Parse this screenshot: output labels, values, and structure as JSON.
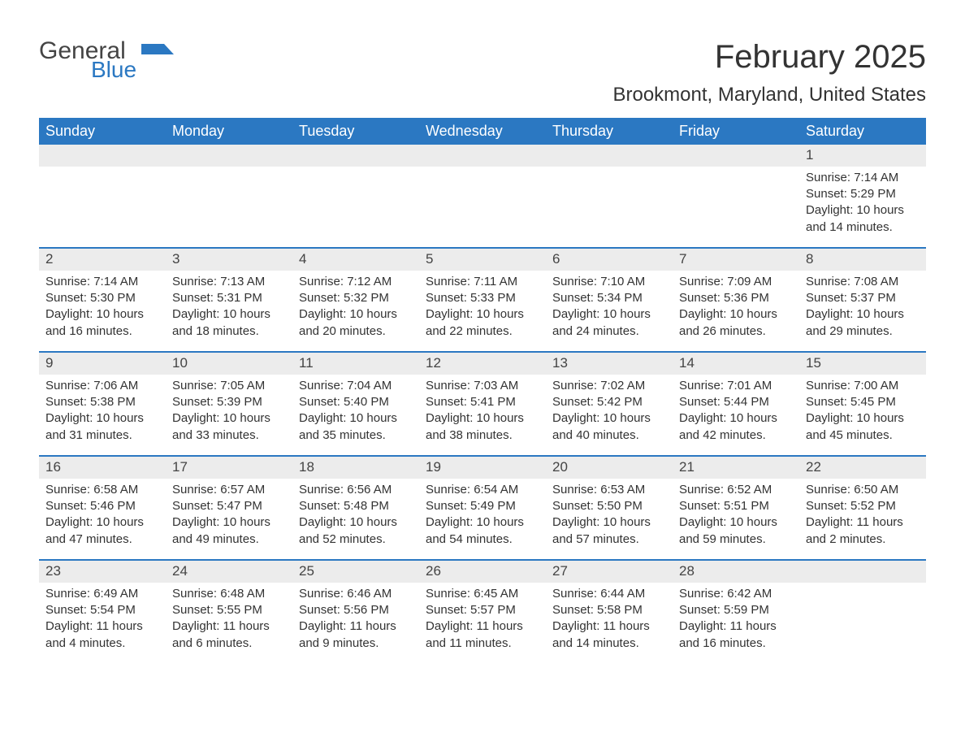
{
  "brand": {
    "word1": "General",
    "word2": "Blue",
    "flag_color": "#2b78c2"
  },
  "title": "February 2025",
  "location": "Brookmont, Maryland, United States",
  "colors": {
    "header_bg": "#2b78c2",
    "header_text": "#ffffff",
    "daynum_band_bg": "#ececec",
    "text": "#333333",
    "page_bg": "#ffffff",
    "week_divider": "#2b78c2"
  },
  "typography": {
    "title_fontsize": 40,
    "location_fontsize": 24,
    "weekday_fontsize": 18,
    "daynum_fontsize": 17,
    "body_fontsize": 15
  },
  "weekdays": [
    "Sunday",
    "Monday",
    "Tuesday",
    "Wednesday",
    "Thursday",
    "Friday",
    "Saturday"
  ],
  "weeks": [
    [
      null,
      null,
      null,
      null,
      null,
      null,
      {
        "n": "1",
        "sunrise": "Sunrise: 7:14 AM",
        "sunset": "Sunset: 5:29 PM",
        "daylight": "Daylight: 10 hours and 14 minutes."
      }
    ],
    [
      {
        "n": "2",
        "sunrise": "Sunrise: 7:14 AM",
        "sunset": "Sunset: 5:30 PM",
        "daylight": "Daylight: 10 hours and 16 minutes."
      },
      {
        "n": "3",
        "sunrise": "Sunrise: 7:13 AM",
        "sunset": "Sunset: 5:31 PM",
        "daylight": "Daylight: 10 hours and 18 minutes."
      },
      {
        "n": "4",
        "sunrise": "Sunrise: 7:12 AM",
        "sunset": "Sunset: 5:32 PM",
        "daylight": "Daylight: 10 hours and 20 minutes."
      },
      {
        "n": "5",
        "sunrise": "Sunrise: 7:11 AM",
        "sunset": "Sunset: 5:33 PM",
        "daylight": "Daylight: 10 hours and 22 minutes."
      },
      {
        "n": "6",
        "sunrise": "Sunrise: 7:10 AM",
        "sunset": "Sunset: 5:34 PM",
        "daylight": "Daylight: 10 hours and 24 minutes."
      },
      {
        "n": "7",
        "sunrise": "Sunrise: 7:09 AM",
        "sunset": "Sunset: 5:36 PM",
        "daylight": "Daylight: 10 hours and 26 minutes."
      },
      {
        "n": "8",
        "sunrise": "Sunrise: 7:08 AM",
        "sunset": "Sunset: 5:37 PM",
        "daylight": "Daylight: 10 hours and 29 minutes."
      }
    ],
    [
      {
        "n": "9",
        "sunrise": "Sunrise: 7:06 AM",
        "sunset": "Sunset: 5:38 PM",
        "daylight": "Daylight: 10 hours and 31 minutes."
      },
      {
        "n": "10",
        "sunrise": "Sunrise: 7:05 AM",
        "sunset": "Sunset: 5:39 PM",
        "daylight": "Daylight: 10 hours and 33 minutes."
      },
      {
        "n": "11",
        "sunrise": "Sunrise: 7:04 AM",
        "sunset": "Sunset: 5:40 PM",
        "daylight": "Daylight: 10 hours and 35 minutes."
      },
      {
        "n": "12",
        "sunrise": "Sunrise: 7:03 AM",
        "sunset": "Sunset: 5:41 PM",
        "daylight": "Daylight: 10 hours and 38 minutes."
      },
      {
        "n": "13",
        "sunrise": "Sunrise: 7:02 AM",
        "sunset": "Sunset: 5:42 PM",
        "daylight": "Daylight: 10 hours and 40 minutes."
      },
      {
        "n": "14",
        "sunrise": "Sunrise: 7:01 AM",
        "sunset": "Sunset: 5:44 PM",
        "daylight": "Daylight: 10 hours and 42 minutes."
      },
      {
        "n": "15",
        "sunrise": "Sunrise: 7:00 AM",
        "sunset": "Sunset: 5:45 PM",
        "daylight": "Daylight: 10 hours and 45 minutes."
      }
    ],
    [
      {
        "n": "16",
        "sunrise": "Sunrise: 6:58 AM",
        "sunset": "Sunset: 5:46 PM",
        "daylight": "Daylight: 10 hours and 47 minutes."
      },
      {
        "n": "17",
        "sunrise": "Sunrise: 6:57 AM",
        "sunset": "Sunset: 5:47 PM",
        "daylight": "Daylight: 10 hours and 49 minutes."
      },
      {
        "n": "18",
        "sunrise": "Sunrise: 6:56 AM",
        "sunset": "Sunset: 5:48 PM",
        "daylight": "Daylight: 10 hours and 52 minutes."
      },
      {
        "n": "19",
        "sunrise": "Sunrise: 6:54 AM",
        "sunset": "Sunset: 5:49 PM",
        "daylight": "Daylight: 10 hours and 54 minutes."
      },
      {
        "n": "20",
        "sunrise": "Sunrise: 6:53 AM",
        "sunset": "Sunset: 5:50 PM",
        "daylight": "Daylight: 10 hours and 57 minutes."
      },
      {
        "n": "21",
        "sunrise": "Sunrise: 6:52 AM",
        "sunset": "Sunset: 5:51 PM",
        "daylight": "Daylight: 10 hours and 59 minutes."
      },
      {
        "n": "22",
        "sunrise": "Sunrise: 6:50 AM",
        "sunset": "Sunset: 5:52 PM",
        "daylight": "Daylight: 11 hours and 2 minutes."
      }
    ],
    [
      {
        "n": "23",
        "sunrise": "Sunrise: 6:49 AM",
        "sunset": "Sunset: 5:54 PM",
        "daylight": "Daylight: 11 hours and 4 minutes."
      },
      {
        "n": "24",
        "sunrise": "Sunrise: 6:48 AM",
        "sunset": "Sunset: 5:55 PM",
        "daylight": "Daylight: 11 hours and 6 minutes."
      },
      {
        "n": "25",
        "sunrise": "Sunrise: 6:46 AM",
        "sunset": "Sunset: 5:56 PM",
        "daylight": "Daylight: 11 hours and 9 minutes."
      },
      {
        "n": "26",
        "sunrise": "Sunrise: 6:45 AM",
        "sunset": "Sunset: 5:57 PM",
        "daylight": "Daylight: 11 hours and 11 minutes."
      },
      {
        "n": "27",
        "sunrise": "Sunrise: 6:44 AM",
        "sunset": "Sunset: 5:58 PM",
        "daylight": "Daylight: 11 hours and 14 minutes."
      },
      {
        "n": "28",
        "sunrise": "Sunrise: 6:42 AM",
        "sunset": "Sunset: 5:59 PM",
        "daylight": "Daylight: 11 hours and 16 minutes."
      },
      null
    ]
  ]
}
